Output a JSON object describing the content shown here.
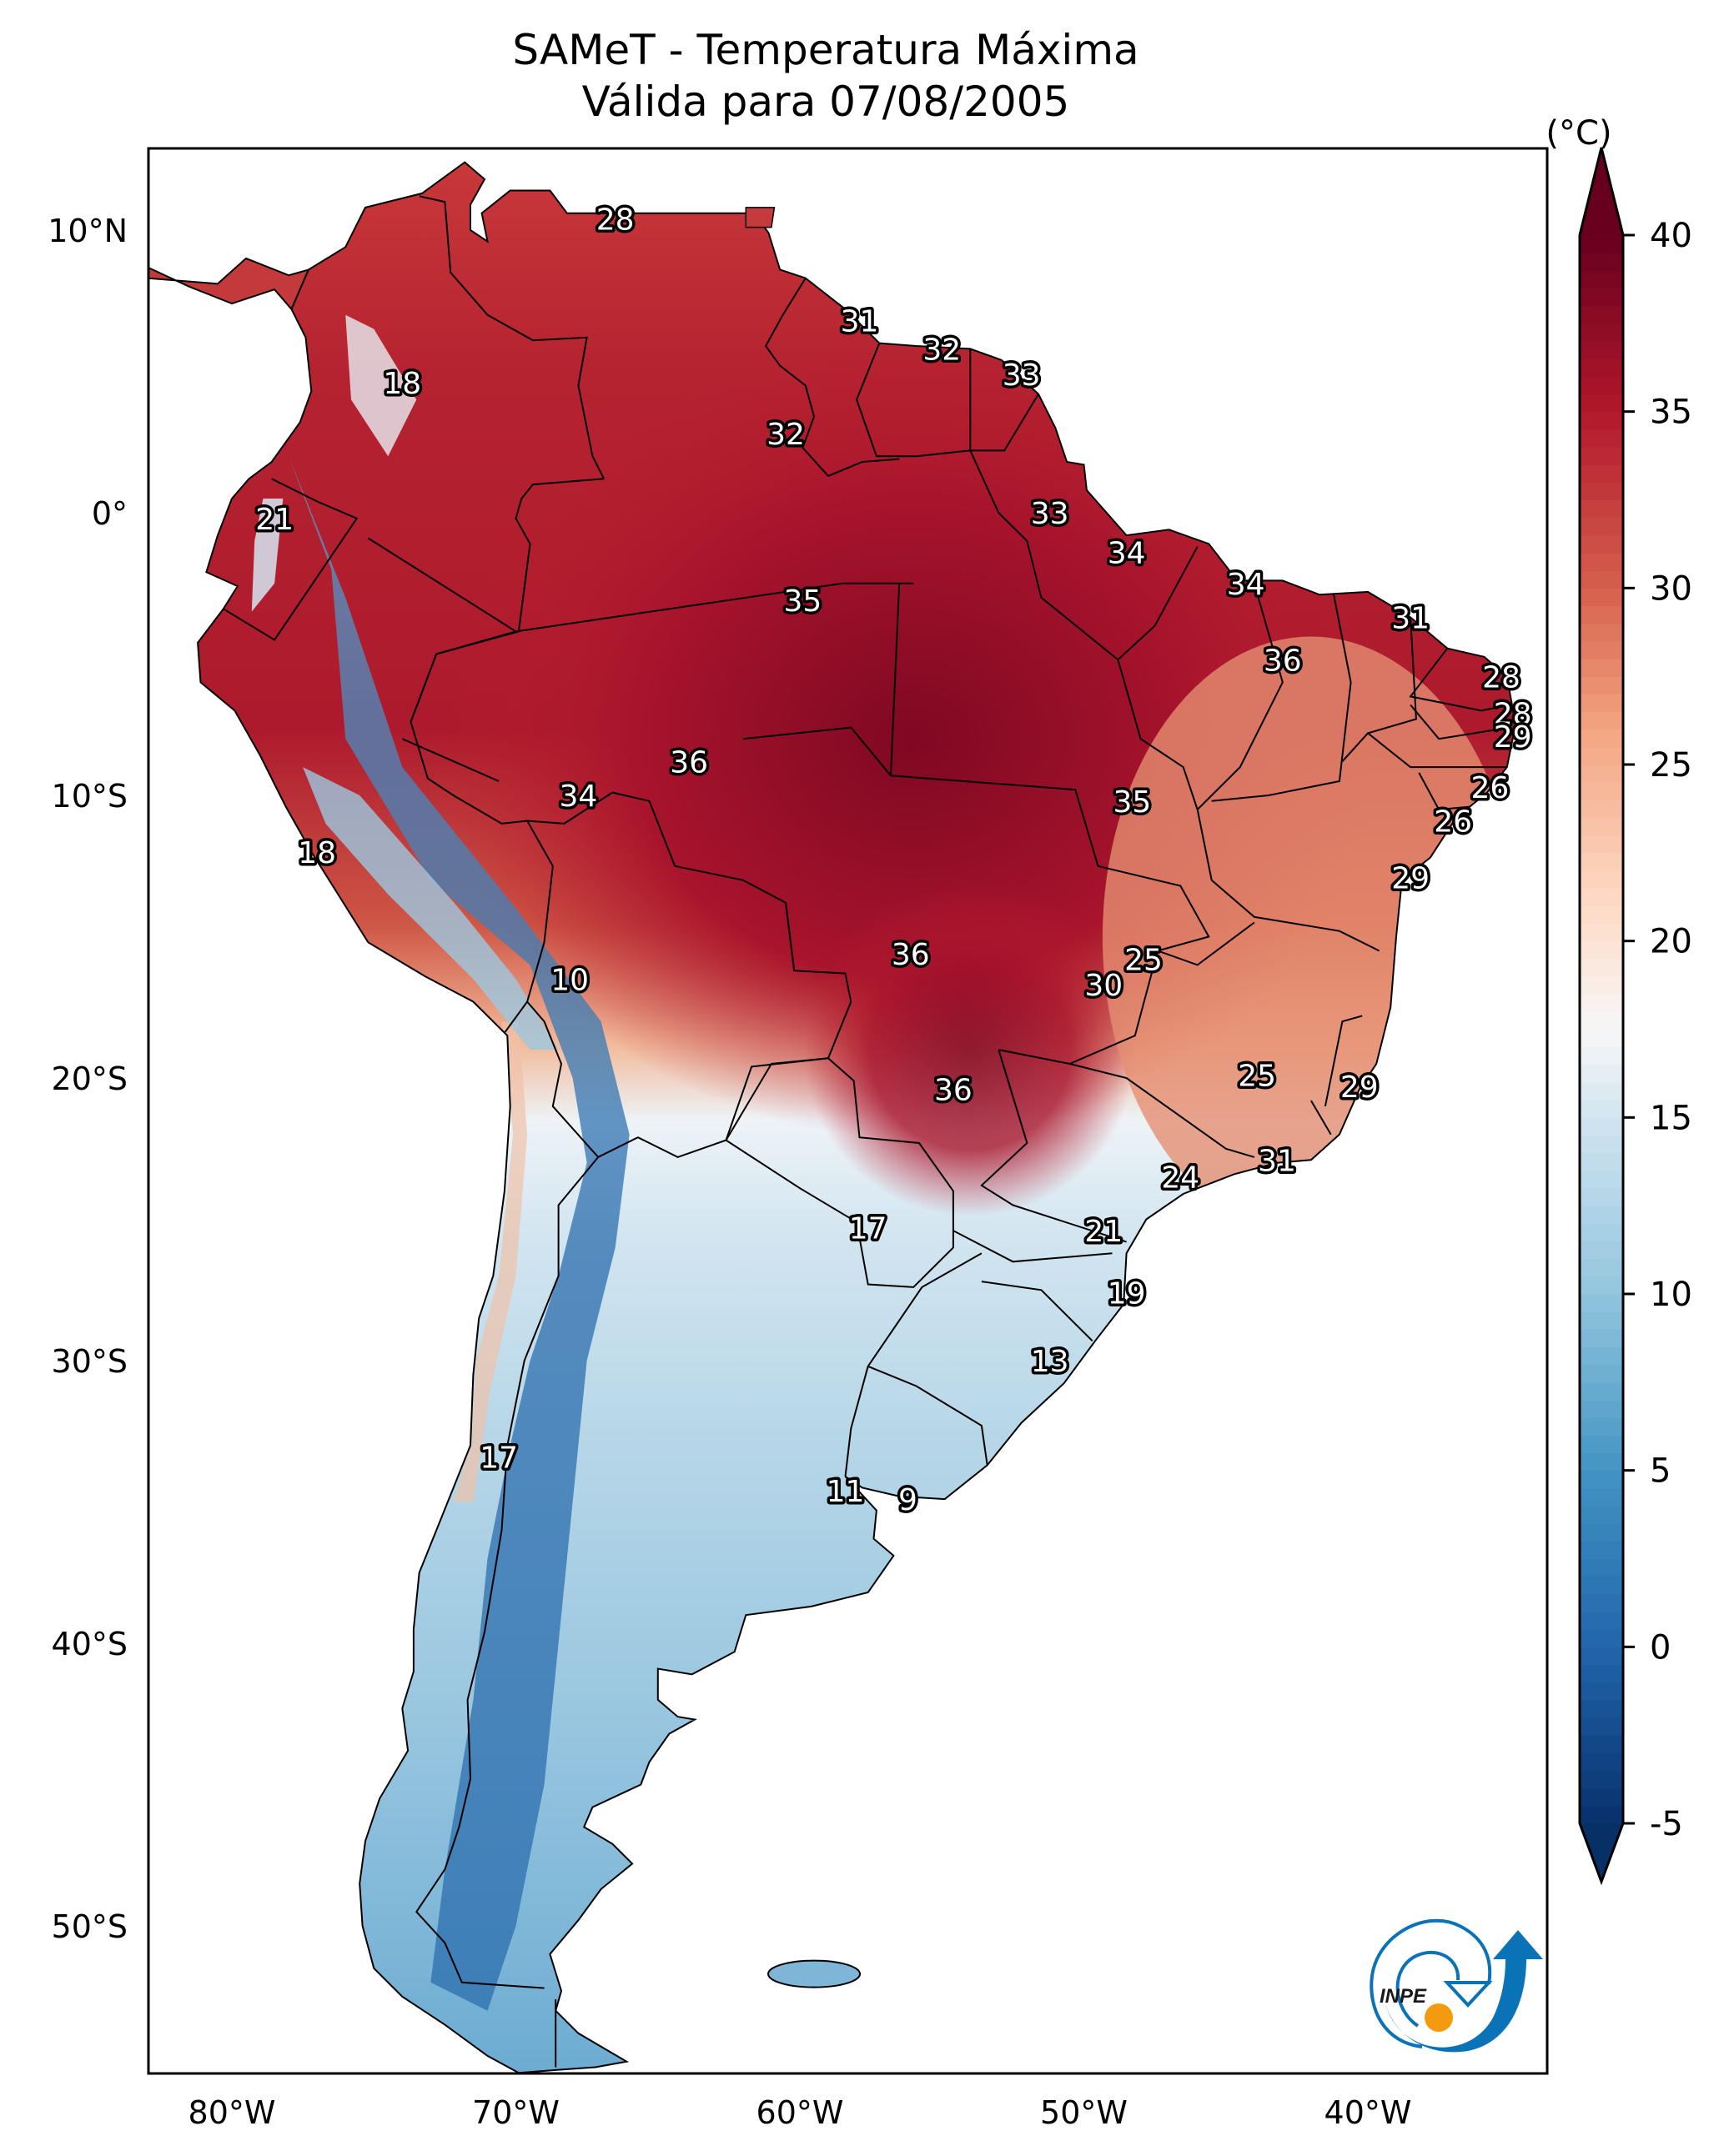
{
  "chart_data": {
    "type": "heatmap",
    "title": "SAMeT - Temperatura Máxima",
    "subtitle": "Válida para 07/08/2005",
    "variable": "Temperatura Máxima",
    "valid_date": "07/08/2005",
    "region": "South America",
    "xlabel": "",
    "ylabel": "",
    "xlim_deg": [
      -83,
      -33
    ],
    "ylim_deg": [
      -56,
      13
    ],
    "x_ticks": [
      {
        "value": -80,
        "label": "80°W"
      },
      {
        "value": -70,
        "label": "70°W"
      },
      {
        "value": -60,
        "label": "60°W"
      },
      {
        "value": -50,
        "label": "50°W"
      },
      {
        "value": -40,
        "label": "40°W"
      }
    ],
    "y_ticks": [
      {
        "value": 10,
        "label": "10°N"
      },
      {
        "value": 0,
        "label": "0°"
      },
      {
        "value": -10,
        "label": "10°S"
      },
      {
        "value": -20,
        "label": "20°S"
      },
      {
        "value": -30,
        "label": "30°S"
      },
      {
        "value": -40,
        "label": "40°S"
      },
      {
        "value": -50,
        "label": "50°S"
      }
    ],
    "colorbar": {
      "label": "(°C)",
      "colormap": "RdBu_r",
      "range": [
        -5,
        40
      ],
      "extend": "both",
      "ticks": [
        {
          "value": 40,
          "label": "40"
        },
        {
          "value": 35,
          "label": "35"
        },
        {
          "value": 30,
          "label": "30"
        },
        {
          "value": 25,
          "label": "25"
        },
        {
          "value": 20,
          "label": "20"
        },
        {
          "value": 15,
          "label": "15"
        },
        {
          "value": 10,
          "label": "10"
        },
        {
          "value": 5,
          "label": "5"
        },
        {
          "value": 0,
          "label": "0"
        },
        {
          "value": -5,
          "label": "-5"
        }
      ],
      "stops": [
        {
          "value": -7,
          "color": "#053061"
        },
        {
          "value": -5,
          "color": "#08306b"
        },
        {
          "value": 0,
          "color": "#2166ac"
        },
        {
          "value": 5,
          "color": "#4393c3"
        },
        {
          "value": 10,
          "color": "#92c5de"
        },
        {
          "value": 15,
          "color": "#d1e5f0"
        },
        {
          "value": 17.5,
          "color": "#f7f7f7"
        },
        {
          "value": 21,
          "color": "#fddbc7"
        },
        {
          "value": 26,
          "color": "#f4a582"
        },
        {
          "value": 30,
          "color": "#d6604d"
        },
        {
          "value": 35,
          "color": "#b2182b"
        },
        {
          "value": 40,
          "color": "#67001f"
        }
      ]
    },
    "station_values": [
      {
        "lon": -66.5,
        "lat": 10.4,
        "value": 28
      },
      {
        "lon": -74.0,
        "lat": 4.6,
        "value": 18
      },
      {
        "lon": -78.5,
        "lat": -0.2,
        "value": 21
      },
      {
        "lon": -57.9,
        "lat": 6.8,
        "value": 31
      },
      {
        "lon": -55.0,
        "lat": 5.8,
        "value": 32
      },
      {
        "lon": -52.2,
        "lat": 4.9,
        "value": 33
      },
      {
        "lon": -60.5,
        "lat": 2.8,
        "value": 32
      },
      {
        "lon": -51.2,
        "lat": 0.0,
        "value": 33
      },
      {
        "lon": -48.5,
        "lat": -1.4,
        "value": 34
      },
      {
        "lon": -44.3,
        "lat": -2.5,
        "value": 34
      },
      {
        "lon": -59.9,
        "lat": -3.1,
        "value": 35
      },
      {
        "lon": -38.5,
        "lat": -3.7,
        "value": 31
      },
      {
        "lon": -43.0,
        "lat": -5.2,
        "value": 36
      },
      {
        "lon": -35.3,
        "lat": -5.8,
        "value": 28
      },
      {
        "lon": -34.9,
        "lat": -7.1,
        "value": 28
      },
      {
        "lon": -34.9,
        "lat": -7.9,
        "value": 29
      },
      {
        "lon": -35.7,
        "lat": -9.7,
        "value": 26
      },
      {
        "lon": -37.0,
        "lat": -10.9,
        "value": 26
      },
      {
        "lon": -38.5,
        "lat": -12.9,
        "value": 29
      },
      {
        "lon": -63.9,
        "lat": -8.8,
        "value": 36
      },
      {
        "lon": -67.8,
        "lat": -10.0,
        "value": 34
      },
      {
        "lon": -48.3,
        "lat": -10.2,
        "value": 35
      },
      {
        "lon": -77.0,
        "lat": -12.0,
        "value": 18
      },
      {
        "lon": -68.1,
        "lat": -16.5,
        "value": 10
      },
      {
        "lon": -56.1,
        "lat": -15.6,
        "value": 36
      },
      {
        "lon": -47.9,
        "lat": -15.8,
        "value": 25
      },
      {
        "lon": -49.3,
        "lat": -16.7,
        "value": 30
      },
      {
        "lon": -54.6,
        "lat": -20.4,
        "value": 36
      },
      {
        "lon": -43.9,
        "lat": -19.9,
        "value": 25
      },
      {
        "lon": -40.3,
        "lat": -20.3,
        "value": 29
      },
      {
        "lon": -43.2,
        "lat": -22.9,
        "value": 31
      },
      {
        "lon": -46.6,
        "lat": -23.5,
        "value": 24
      },
      {
        "lon": -49.3,
        "lat": -25.4,
        "value": 21
      },
      {
        "lon": -57.6,
        "lat": -25.3,
        "value": 17
      },
      {
        "lon": -48.5,
        "lat": -27.6,
        "value": 19
      },
      {
        "lon": -51.2,
        "lat": -30.0,
        "value": 13
      },
      {
        "lon": -70.6,
        "lat": -33.4,
        "value": 17
      },
      {
        "lon": -58.4,
        "lat": -34.6,
        "value": 11
      },
      {
        "lon": -56.2,
        "lat": -34.9,
        "value": 9
      }
    ]
  },
  "logo": {
    "text": "INPE",
    "arrow_color": "#0a73b8",
    "sun_color": "#f39a0f",
    "text_color": "#1a1a1a"
  }
}
